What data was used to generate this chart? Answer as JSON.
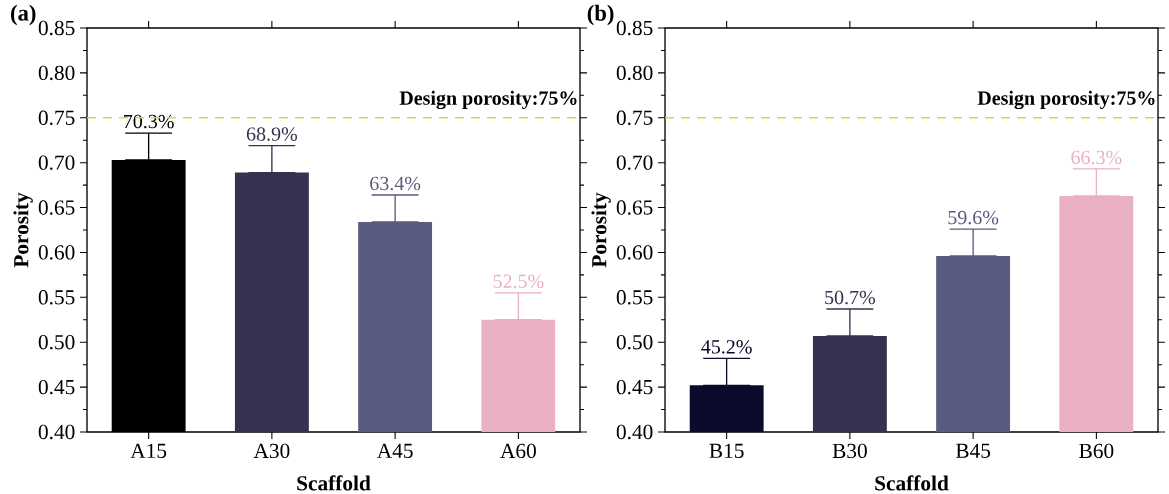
{
  "chart_data": [
    {
      "type": "bar",
      "title": "(a)",
      "xlabel": "Scaffold",
      "ylabel": "Porosity",
      "categories": [
        "A15",
        "A30",
        "A45",
        "A60"
      ],
      "values": [
        0.703,
        0.689,
        0.634,
        0.525
      ],
      "colors": [
        "#000000",
        "#35324f",
        "#5a5b80",
        "#e8b0c2"
      ],
      "errors": [
        [
          0.703,
          0.733
        ],
        [
          0.689,
          0.719
        ],
        [
          0.634,
          0.664
        ],
        [
          0.525,
          0.555
        ]
      ],
      "value_labels": [
        "70.3%",
        "68.9%",
        "63.4%",
        "52.5%"
      ],
      "ylim": [
        0.4,
        0.85
      ],
      "yticks": [
        {
          "value": 0.4,
          "label": "0.40"
        },
        {
          "value": 0.45,
          "label": "0.45"
        },
        {
          "value": 0.5,
          "label": "0.50"
        },
        {
          "value": 0.55,
          "label": "0.55"
        },
        {
          "value": 0.6,
          "label": "0.60"
        },
        {
          "value": 0.65,
          "label": "0.65"
        },
        {
          "value": 0.7,
          "label": "0.70"
        },
        {
          "value": 0.75,
          "label": "0.75"
        },
        {
          "value": 0.8,
          "label": "0.80"
        },
        {
          "value": 0.85,
          "label": "0.85"
        }
      ],
      "ref_lines": [
        {
          "axis": "y",
          "value": 0.75,
          "label": "Design porosity:75%",
          "color": "#e8d820",
          "line_style": "dashed"
        }
      ]
    },
    {
      "type": "bar",
      "title": "(b)",
      "xlabel": "Scaffold",
      "ylabel": "Porosity",
      "categories": [
        "B15",
        "B30",
        "B45",
        "B60"
      ],
      "values": [
        0.452,
        0.507,
        0.596,
        0.663
      ],
      "colors": [
        "#0c0a2a",
        "#35324f",
        "#5a5b80",
        "#e8b0c2"
      ],
      "errors": [
        [
          0.452,
          0.482
        ],
        [
          0.507,
          0.537
        ],
        [
          0.596,
          0.626
        ],
        [
          0.663,
          0.693
        ]
      ],
      "value_labels": [
        "45.2%",
        "50.7%",
        "59.6%",
        "66.3%"
      ],
      "ylim": [
        0.4,
        0.85
      ],
      "yticks": [
        {
          "value": 0.4,
          "label": "0.40"
        },
        {
          "value": 0.45,
          "label": "0.45"
        },
        {
          "value": 0.5,
          "label": "0.50"
        },
        {
          "value": 0.55,
          "label": "0.55"
        },
        {
          "value": 0.6,
          "label": "0.60"
        },
        {
          "value": 0.65,
          "label": "0.65"
        },
        {
          "value": 0.7,
          "label": "0.70"
        },
        {
          "value": 0.75,
          "label": "0.75"
        },
        {
          "value": 0.8,
          "label": "0.80"
        },
        {
          "value": 0.85,
          "label": "0.85"
        }
      ],
      "ref_lines": [
        {
          "axis": "y",
          "value": 0.75,
          "label": "Design porosity:75%",
          "color": "#e8d820",
          "line_style": "dashed"
        }
      ]
    }
  ]
}
